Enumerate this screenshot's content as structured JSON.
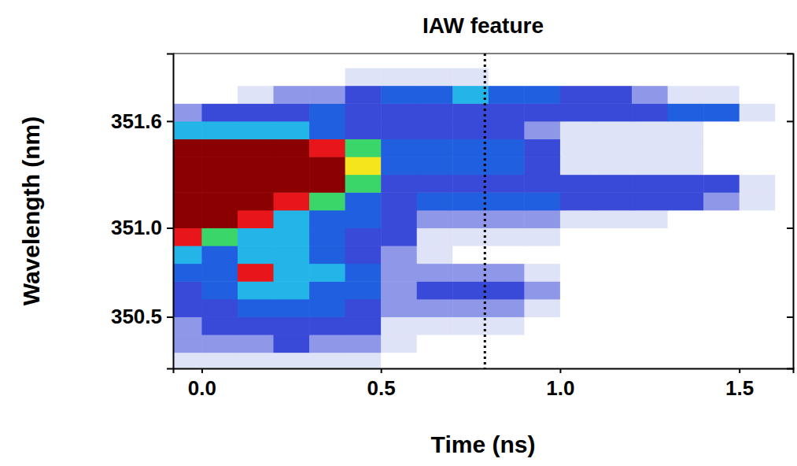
{
  "chart_data": {
    "type": "heatmap",
    "title": "IAW feature",
    "x_label": "Time (ns)",
    "y_label": "Wavelength (nm)",
    "x": [
      -0.05,
      0.05,
      0.15,
      0.25,
      0.35,
      0.45,
      0.55,
      0.65,
      0.75,
      0.85,
      0.95,
      1.05,
      1.15,
      1.25,
      1.35,
      1.45,
      1.55,
      1.65
    ],
    "y": [
      350.25,
      350.35,
      350.45,
      350.55,
      350.65,
      350.75,
      350.85,
      350.95,
      351.05,
      351.15,
      351.25,
      351.35,
      351.45,
      351.55,
      351.65,
      351.75,
      351.85,
      351.95
    ],
    "z": [
      [
        1,
        1,
        1,
        1,
        1,
        1,
        0,
        0,
        0,
        0,
        0,
        0,
        0,
        0,
        0,
        0,
        0,
        0
      ],
      [
        2,
        2,
        2,
        3,
        2,
        2,
        1,
        0,
        0,
        0,
        0,
        0,
        0,
        0,
        0,
        0,
        0,
        0
      ],
      [
        2,
        3,
        3,
        3,
        3,
        3,
        1,
        1,
        1,
        1,
        0,
        0,
        0,
        0,
        0,
        0,
        0,
        0
      ],
      [
        3,
        3,
        4,
        4,
        4,
        3,
        2,
        2,
        2,
        2,
        1,
        0,
        0,
        0,
        0,
        0,
        0,
        0
      ],
      [
        3,
        4,
        5,
        5,
        4,
        4,
        2,
        3,
        3,
        3,
        2,
        0,
        0,
        0,
        0,
        0,
        0,
        0
      ],
      [
        4,
        4,
        8,
        5,
        5,
        4,
        2,
        2,
        2,
        2,
        1,
        0,
        0,
        0,
        0,
        0,
        0,
        0
      ],
      [
        5,
        4,
        5,
        5,
        4,
        3,
        2,
        1,
        0,
        0,
        0,
        0,
        0,
        0,
        0,
        0,
        0,
        0
      ],
      [
        8,
        6,
        5,
        5,
        4,
        3,
        3,
        1,
        1,
        1,
        1,
        0,
        0,
        0,
        0,
        0,
        0,
        0
      ],
      [
        9,
        9,
        8,
        5,
        4,
        4,
        3,
        2,
        2,
        2,
        2,
        1,
        1,
        1,
        0,
        0,
        0,
        0
      ],
      [
        9,
        9,
        9,
        8,
        6,
        4,
        3,
        4,
        4,
        4,
        4,
        3,
        3,
        3,
        3,
        2,
        1,
        0
      ],
      [
        9,
        9,
        9,
        9,
        9,
        6,
        3,
        3,
        3,
        3,
        3,
        3,
        3,
        3,
        3,
        3,
        1,
        0
      ],
      [
        9,
        9,
        9,
        9,
        9,
        7,
        4,
        4,
        4,
        4,
        3,
        1,
        1,
        1,
        1,
        0,
        0,
        0
      ],
      [
        9,
        9,
        9,
        9,
        8,
        6,
        4,
        4,
        4,
        4,
        3,
        1,
        1,
        1,
        1,
        0,
        0,
        0
      ],
      [
        5,
        5,
        5,
        5,
        4,
        3,
        3,
        3,
        3,
        3,
        2,
        1,
        1,
        1,
        1,
        0,
        0,
        0
      ],
      [
        2,
        3,
        3,
        3,
        4,
        3,
        3,
        3,
        3,
        3,
        3,
        3,
        3,
        3,
        4,
        4,
        1,
        0
      ],
      [
        0,
        0,
        1,
        2,
        2,
        3,
        4,
        4,
        5,
        4,
        4,
        3,
        3,
        2,
        1,
        1,
        0,
        0
      ],
      [
        0,
        0,
        0,
        0,
        0,
        1,
        1,
        1,
        1,
        0,
        0,
        0,
        0,
        0,
        0,
        0,
        0,
        0
      ],
      [
        0,
        0,
        0,
        0,
        0,
        0,
        0,
        0,
        0,
        0,
        0,
        0,
        0,
        0,
        0,
        0,
        0,
        0
      ]
    ],
    "zlim": [
      0,
      9
    ],
    "vline": 0.79,
    "xlim": [
      -0.08,
      1.65
    ],
    "ylim": [
      350.21,
      351.98
    ],
    "xticks": [
      {
        "value": 0,
        "label": "0.0"
      },
      0.5,
      {
        "value": 1,
        "label": "1.0"
      },
      1.5
    ],
    "yticks": [
      350.5,
      {
        "value": 351,
        "label": "351.0"
      },
      351.6
    ],
    "grid": false
  }
}
